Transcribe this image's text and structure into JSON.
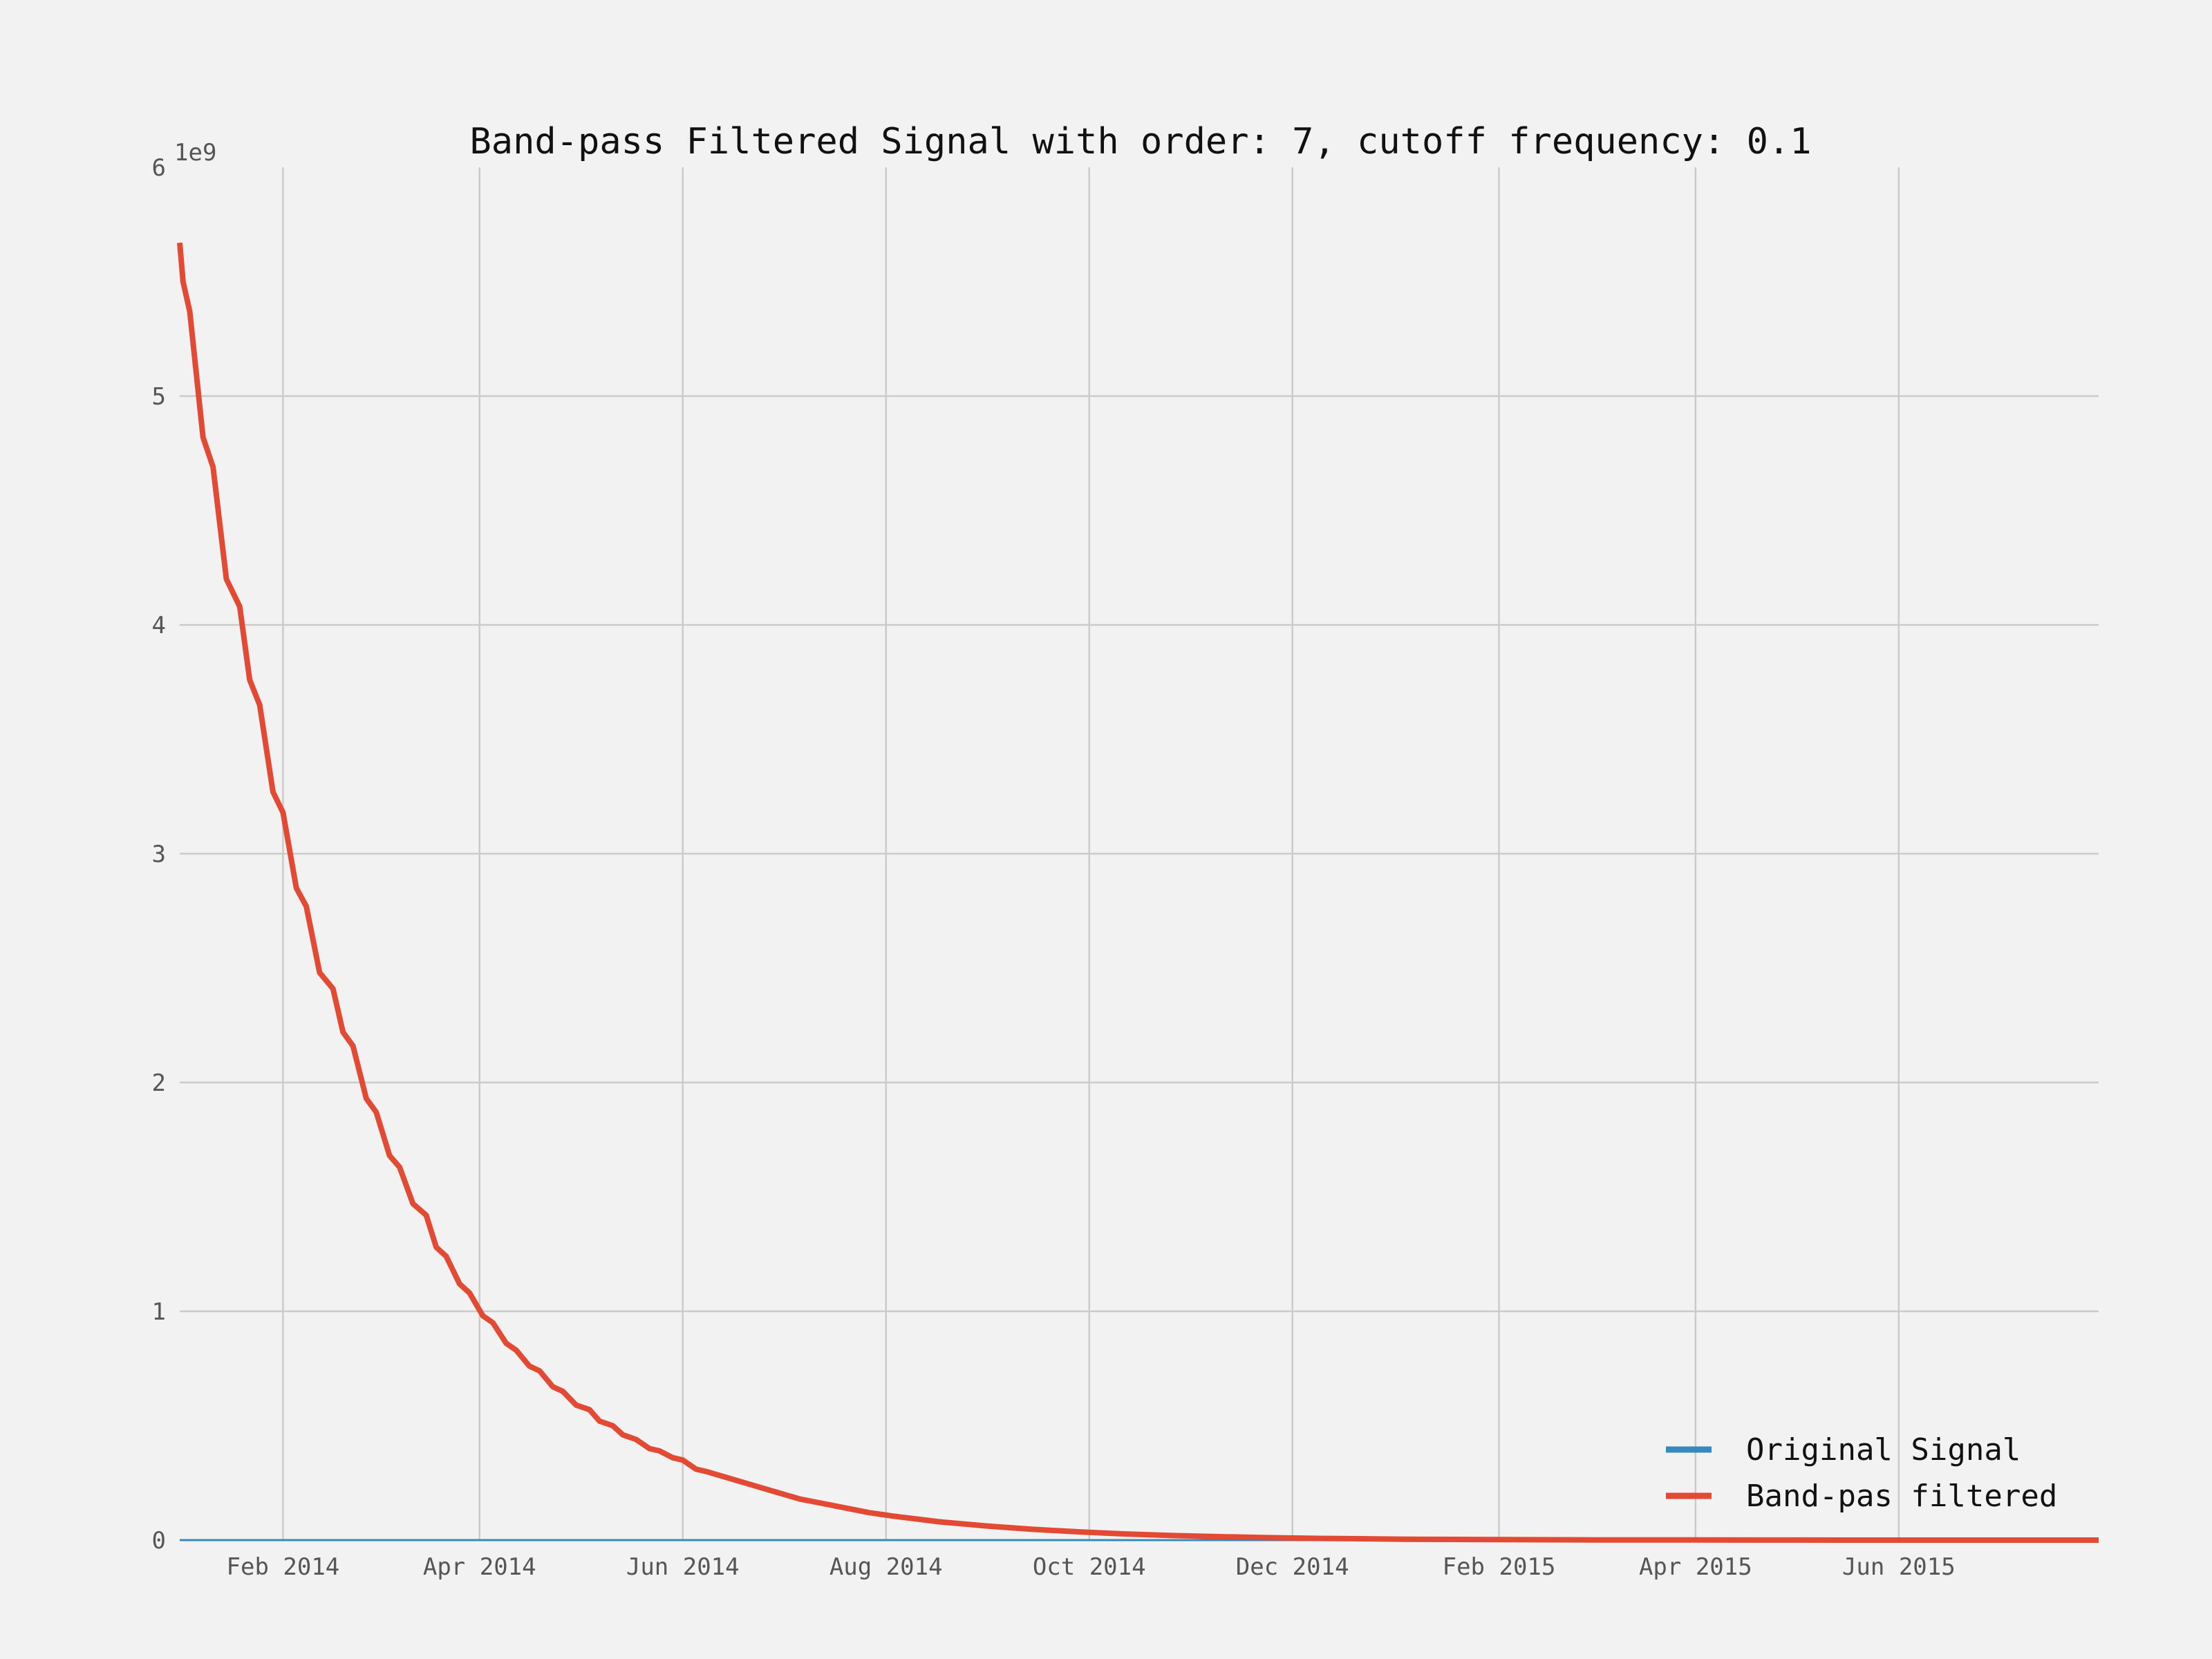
{
  "chart_data": {
    "type": "line",
    "title": "Band-pass Filtered Signal with order: 7, cutoff frequency: 0.1",
    "xlabel": "",
    "ylabel": "",
    "y_multiplier_label": "1e9",
    "xlim": [
      "2014-01-01",
      "2015-07-31"
    ],
    "ylim": [
      0,
      6
    ],
    "x_ticks": [
      "2014-02-01",
      "2014-04-01",
      "2014-06-01",
      "2014-08-01",
      "2014-10-01",
      "2014-12-01",
      "2015-02-01",
      "2015-04-01",
      "2015-06-01"
    ],
    "x_tick_labels": [
      "Feb 2014",
      "Apr 2014",
      "Jun 2014",
      "Aug 2014",
      "Oct 2014",
      "Dec 2014",
      "Feb 2015",
      "Apr 2015",
      "Jun 2015"
    ],
    "y_ticks": [
      0,
      1,
      2,
      3,
      4,
      5,
      6
    ],
    "y_tick_labels": [
      "0",
      "1",
      "2",
      "3",
      "4",
      "5",
      "6"
    ],
    "grid": true,
    "legend_position": "bottom-right",
    "series": [
      {
        "name": "Original Signal",
        "color": "#348abd",
        "x": [
          "2014-01-01",
          "2014-06-01",
          "2015-01-01",
          "2015-07-31"
        ],
        "y": [
          0,
          0,
          0,
          0
        ]
      },
      {
        "name": "Band-pas filtered",
        "color": "#e24a33",
        "x": [
          "2014-01-01",
          "2014-01-02",
          "2014-01-04",
          "2014-01-08",
          "2014-01-11",
          "2014-01-15",
          "2014-01-19",
          "2014-01-22",
          "2014-01-25",
          "2014-01-29",
          "2014-02-01",
          "2014-02-05",
          "2014-02-08",
          "2014-02-12",
          "2014-02-16",
          "2014-02-19",
          "2014-02-22",
          "2014-02-26",
          "2014-03-01",
          "2014-03-05",
          "2014-03-08",
          "2014-03-12",
          "2014-03-16",
          "2014-03-19",
          "2014-03-22",
          "2014-03-26",
          "2014-03-29",
          "2014-04-02",
          "2014-04-05",
          "2014-04-09",
          "2014-04-12",
          "2014-04-16",
          "2014-04-19",
          "2014-04-23",
          "2014-04-26",
          "2014-04-30",
          "2014-05-04",
          "2014-05-07",
          "2014-05-11",
          "2014-05-14",
          "2014-05-18",
          "2014-05-22",
          "2014-05-25",
          "2014-05-29",
          "2014-06-01",
          "2014-06-05",
          "2014-06-08",
          "2014-06-15",
          "2014-06-22",
          "2014-06-29",
          "2014-07-06",
          "2014-07-13",
          "2014-07-20",
          "2014-07-27",
          "2014-08-03",
          "2014-08-17",
          "2014-08-31",
          "2014-09-14",
          "2014-09-28",
          "2014-10-12",
          "2014-10-26",
          "2014-11-09",
          "2014-11-23",
          "2014-12-07",
          "2014-12-21",
          "2015-01-04",
          "2015-01-18",
          "2015-02-01",
          "2015-03-01",
          "2015-04-01",
          "2015-05-01",
          "2015-06-01",
          "2015-07-31"
        ],
        "y": [
          5.67,
          5.5,
          5.37,
          4.82,
          4.69,
          4.2,
          4.08,
          3.76,
          3.65,
          3.27,
          3.18,
          2.85,
          2.77,
          2.48,
          2.41,
          2.22,
          2.16,
          1.93,
          1.87,
          1.68,
          1.63,
          1.47,
          1.42,
          1.28,
          1.24,
          1.12,
          1.08,
          0.98,
          0.95,
          0.86,
          0.83,
          0.76,
          0.74,
          0.67,
          0.65,
          0.59,
          0.57,
          0.52,
          0.5,
          0.46,
          0.44,
          0.4,
          0.39,
          0.36,
          0.35,
          0.31,
          0.3,
          0.27,
          0.24,
          0.21,
          0.18,
          0.16,
          0.14,
          0.12,
          0.105,
          0.08,
          0.062,
          0.047,
          0.036,
          0.027,
          0.02,
          0.015,
          0.011,
          0.008,
          0.006,
          0.004,
          0.003,
          0.002,
          0.001,
          0.0005,
          0.0002,
          0.0001,
          0
        ]
      }
    ]
  }
}
